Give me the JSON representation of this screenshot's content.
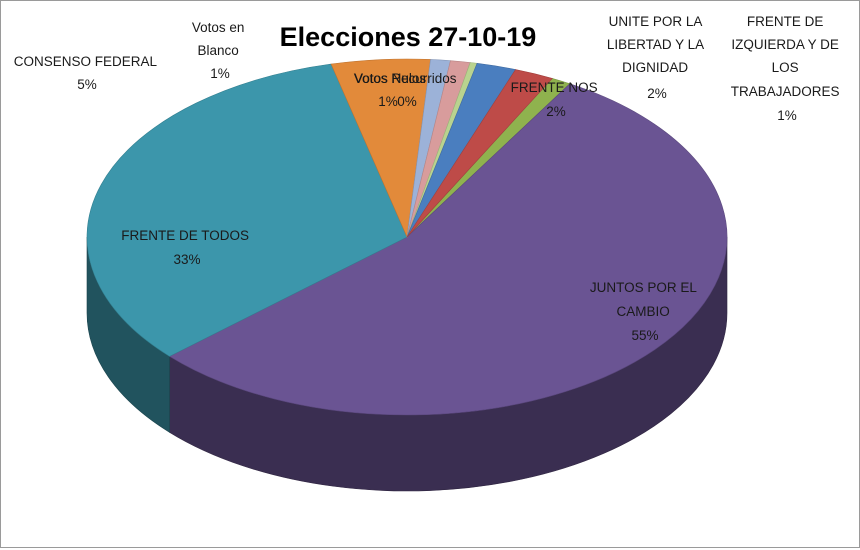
{
  "chart_data": {
    "type": "pie",
    "title": "Elecciones 27-10-19",
    "slices": [
      {
        "key": "frente_izquierda",
        "label": "FRENTE DE IZQUIERDA Y DE LOS TRABAJADORES",
        "value": 1,
        "value_label": "1%",
        "color": "#8fb24e"
      },
      {
        "key": "juntos",
        "label": "JUNTOS POR EL CAMBIO",
        "value": 55,
        "value_label": "55%",
        "color": "#6a5493"
      },
      {
        "key": "frente_todos",
        "label": "FRENTE DE TODOS",
        "value": 33,
        "value_label": "33%",
        "color": "#3c96ab"
      },
      {
        "key": "consenso",
        "label": "CONSENSO FEDERAL",
        "value": 5,
        "value_label": "5%",
        "color": "#e28a3a"
      },
      {
        "key": "blanco",
        "label": "Votos en Blanco",
        "value": 1,
        "value_label": "1%",
        "color": "#9cb2d8"
      },
      {
        "key": "nulos",
        "label": "Votos Nulos",
        "value": 1,
        "value_label": "1%",
        "color": "#d89c9c"
      },
      {
        "key": "recurridos",
        "label": "Votos Recurridos",
        "value": 0,
        "value_label": "0%",
        "color": "#b9d38f"
      },
      {
        "key": "frente_nos",
        "label": "FRENTE NOS",
        "value": 2,
        "value_label": "2%",
        "color": "#4a7ebf"
      },
      {
        "key": "unite",
        "label": "UNITE POR LA LIBERTAD Y LA DIGNIDAD",
        "value": 2,
        "value_label": "2%",
        "color": "#be4b48"
      }
    ],
    "legend": "none",
    "style": "3d-pie"
  },
  "labels": {
    "consenso": {
      "lines": [
        "CONSENSO FEDERAL"
      ],
      "pct": "5%"
    },
    "blanco": {
      "lines": [
        "Votos en",
        "Blanco"
      ],
      "pct": "1%"
    },
    "nulos": {
      "lines": [
        "Votos Nulos"
      ],
      "pct": "1%"
    },
    "recurridos": {
      "lines": [
        "Votos Recurridos"
      ],
      "pct": "0%"
    },
    "frente_nos": {
      "lines": [
        "FRENTE NOS"
      ],
      "pct": "2%"
    },
    "unite": {
      "lines": [
        "UNITE POR LA",
        "LIBERTAD Y LA",
        "DIGNIDAD"
      ],
      "pct": "2%"
    },
    "frente_izquierda": {
      "lines": [
        "FRENTE DE",
        "IZQUIERDA Y DE",
        "LOS",
        "TRABAJADORES"
      ],
      "pct": "1%"
    },
    "frente_todos": {
      "lines": [
        "FRENTE DE TODOS"
      ],
      "pct": "33%"
    },
    "juntos": {
      "lines": [
        "JUNTOS POR EL",
        "CAMBIO"
      ],
      "pct": "55%"
    }
  }
}
